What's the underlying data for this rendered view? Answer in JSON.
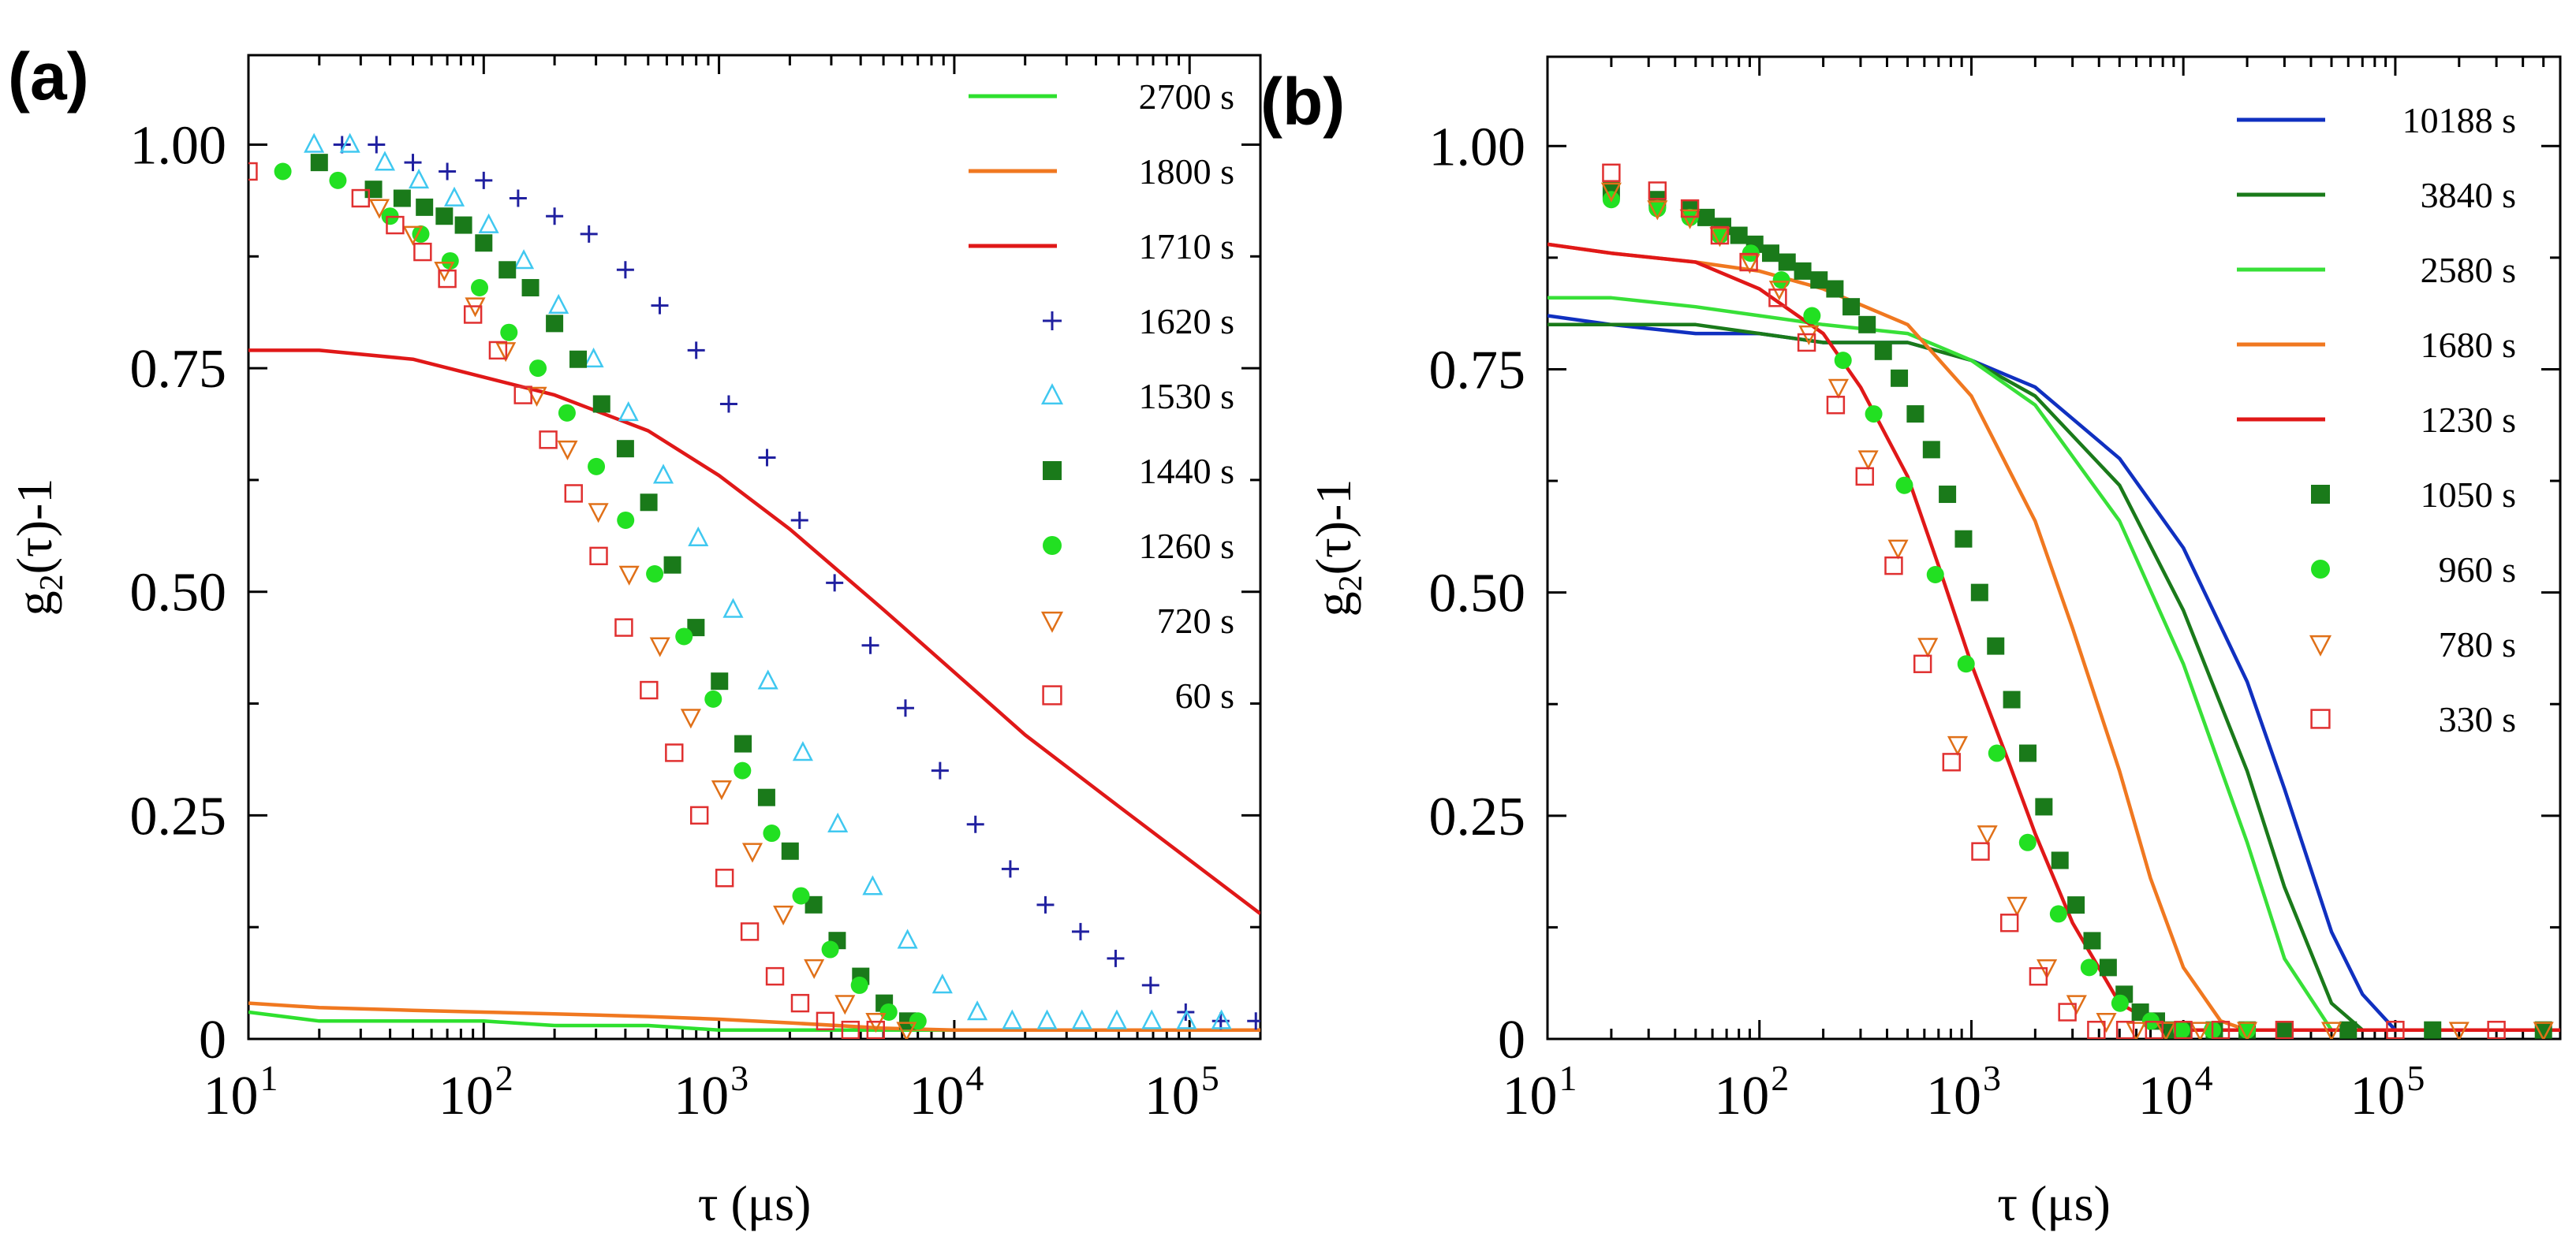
{
  "chart_data": [
    {
      "panel_label": "(a)",
      "type": "scatter",
      "xscale": "log",
      "xlim": [
        10,
        200000
      ],
      "ylim": [
        0,
        1.1
      ],
      "xlabel": "τ (μs)",
      "ylabel": "g2(τ)-1",
      "ylabel_parts": {
        "base": "g",
        "sub": "2",
        "tail": "(τ)-1"
      },
      "xticks": [
        {
          "value": 10,
          "base": "10",
          "exp": "1"
        },
        {
          "value": 100,
          "base": "10",
          "exp": "2"
        },
        {
          "value": 1000,
          "base": "10",
          "exp": "3"
        },
        {
          "value": 10000,
          "base": "10",
          "exp": "4"
        },
        {
          "value": 100000,
          "base": "10",
          "exp": "5"
        }
      ],
      "yticks": [
        {
          "value": 0,
          "label": "0"
        },
        {
          "value": 0.25,
          "label": "0.25"
        },
        {
          "value": 0.5,
          "label": "0.50"
        },
        {
          "value": 0.75,
          "label": "0.75"
        },
        {
          "value": 1.0,
          "label": "1.00"
        }
      ],
      "legend_position": "top-right",
      "series": [
        {
          "name": "2700 s",
          "style": "line",
          "color": "#2ee02e",
          "x": [
            10,
            20,
            50,
            100,
            200,
            500,
            1000,
            2000,
            5000,
            10000,
            50000,
            200000
          ],
          "y": [
            0.03,
            0.02,
            0.02,
            0.02,
            0.015,
            0.015,
            0.01,
            0.01,
            0.01,
            0.01,
            0.01,
            0.01
          ]
        },
        {
          "name": "1800 s",
          "style": "line",
          "color": "#f07820",
          "x": [
            10,
            20,
            50,
            100,
            200,
            500,
            1000,
            2000,
            5000,
            10000,
            50000,
            200000
          ],
          "y": [
            0.04,
            0.035,
            0.032,
            0.03,
            0.028,
            0.025,
            0.022,
            0.018,
            0.012,
            0.01,
            0.01,
            0.01
          ]
        },
        {
          "name": "1710 s",
          "style": "line",
          "color": "#e01818",
          "x": [
            10,
            20,
            50,
            100,
            200,
            500,
            1000,
            2000,
            5000,
            10000,
            20000,
            50000,
            100000,
            200000
          ],
          "y": [
            0.77,
            0.77,
            0.76,
            0.74,
            0.72,
            0.68,
            0.63,
            0.57,
            0.48,
            0.41,
            0.34,
            0.26,
            0.2,
            0.14
          ]
        },
        {
          "name": "1620 s",
          "style": "marker",
          "marker": "plus",
          "color": "#2020a0",
          "x": [
            25,
            35,
            50,
            70,
            100,
            140,
            200,
            280,
            400,
            560,
            800,
            1100,
            1600,
            2200,
            3100,
            4400,
            6200,
            8700,
            12300,
            17300,
            24400,
            34400,
            48500,
            68300,
            96300,
            135700,
            191300
          ],
          "y": [
            1.0,
            1.0,
            0.98,
            0.97,
            0.96,
            0.94,
            0.92,
            0.9,
            0.86,
            0.82,
            0.77,
            0.71,
            0.65,
            0.58,
            0.51,
            0.44,
            0.37,
            0.3,
            0.24,
            0.19,
            0.15,
            0.12,
            0.09,
            0.06,
            0.03,
            0.02,
            0.02
          ]
        },
        {
          "name": "1530 s",
          "style": "marker",
          "marker": "triangle-up",
          "color": "#40c8f0",
          "x": [
            19,
            27,
            38,
            53,
            75,
            105,
            148,
            208,
            293,
            412,
            580,
            816,
            1148,
            1615,
            2272,
            3197,
            4498,
            6328,
            8903,
            12525,
            17622,
            24793,
            34881,
            49073,
            69040,
            97131,
            136652
          ],
          "y": [
            1.0,
            1.0,
            0.98,
            0.96,
            0.94,
            0.91,
            0.87,
            0.82,
            0.76,
            0.7,
            0.63,
            0.56,
            0.48,
            0.4,
            0.32,
            0.24,
            0.17,
            0.11,
            0.06,
            0.03,
            0.02,
            0.02,
            0.02,
            0.02,
            0.02,
            0.02,
            0.02
          ]
        },
        {
          "name": "1440 s",
          "style": "marker",
          "marker": "square-filled",
          "color": "#1a7a1a",
          "x": [
            20,
            34,
            45,
            56,
            68,
            82,
            100,
            126,
            158,
            200,
            252,
            317,
            400,
            503,
            634,
            798,
            1005,
            1265,
            1593,
            2006,
            2525,
            3179,
            4003,
            5040,
            6345
          ],
          "y": [
            0.98,
            0.95,
            0.94,
            0.93,
            0.92,
            0.91,
            0.89,
            0.86,
            0.84,
            0.8,
            0.76,
            0.71,
            0.66,
            0.6,
            0.53,
            0.46,
            0.4,
            0.33,
            0.27,
            0.21,
            0.15,
            0.11,
            0.07,
            0.04,
            0.02
          ]
        },
        {
          "name": "1260 s",
          "style": "marker",
          "marker": "circle-filled",
          "color": "#22e022",
          "x": [
            14,
            24,
            40,
            54,
            72,
            96,
            128,
            170,
            226,
            301,
            401,
            533,
            710,
            945,
            1258,
            1675,
            2230,
            2969,
            3953,
            5263,
            7007
          ],
          "y": [
            0.97,
            0.96,
            0.92,
            0.9,
            0.87,
            0.84,
            0.79,
            0.75,
            0.7,
            0.64,
            0.58,
            0.52,
            0.45,
            0.38,
            0.3,
            0.23,
            0.16,
            0.1,
            0.06,
            0.03,
            0.02
          ]
        },
        {
          "name": "720 s",
          "style": "marker",
          "marker": "triangle-down",
          "color": "#e07018",
          "x": [
            36,
            50,
            68,
            92,
            124,
            168,
            227,
            307,
            415,
            561,
            759,
            1026,
            1387,
            1876,
            2536,
            3430,
            4638,
            6270
          ],
          "y": [
            0.93,
            0.9,
            0.86,
            0.82,
            0.77,
            0.72,
            0.66,
            0.59,
            0.52,
            0.44,
            0.36,
            0.28,
            0.21,
            0.14,
            0.08,
            0.04,
            0.02,
            0.01
          ]
        },
        {
          "name": "60 s",
          "style": "marker",
          "marker": "square-open",
          "color": "#e03030",
          "x": [
            10,
            30,
            42,
            55,
            70,
            90,
            115,
            147,
            188,
            241,
            308,
            394,
            504,
            645,
            825,
            1056,
            1351,
            1729,
            2212,
            2831,
            3622,
            4635
          ],
          "y": [
            0.97,
            0.94,
            0.91,
            0.88,
            0.85,
            0.81,
            0.77,
            0.72,
            0.67,
            0.61,
            0.54,
            0.46,
            0.39,
            0.32,
            0.25,
            0.18,
            0.12,
            0.07,
            0.04,
            0.02,
            0.01,
            0.01
          ]
        }
      ]
    },
    {
      "panel_label": "(b)",
      "type": "scatter",
      "xscale": "log",
      "xlim": [
        10,
        600000
      ],
      "ylim": [
        0,
        1.1
      ],
      "xlabel": "τ (μs)",
      "ylabel": "g2(τ)-1",
      "ylabel_parts": {
        "base": "g",
        "sub": "2",
        "tail": "(τ)-1"
      },
      "xticks": [
        {
          "value": 10,
          "base": "10",
          "exp": "1"
        },
        {
          "value": 100,
          "base": "10",
          "exp": "2"
        },
        {
          "value": 1000,
          "base": "10",
          "exp": "3"
        },
        {
          "value": 10000,
          "base": "10",
          "exp": "4"
        },
        {
          "value": 100000,
          "base": "10",
          "exp": "5"
        }
      ],
      "yticks": [
        {
          "value": 0,
          "label": "0"
        },
        {
          "value": 0.25,
          "label": "0.25"
        },
        {
          "value": 0.5,
          "label": "0.50"
        },
        {
          "value": 0.75,
          "label": "0.75"
        },
        {
          "value": 1.0,
          "label": "1.00"
        }
      ],
      "legend_position": "top-right",
      "series": [
        {
          "name": "10188 s",
          "style": "line",
          "color": "#1030c0",
          "x": [
            10,
            20,
            50,
            100,
            200,
            500,
            1000,
            2000,
            5000,
            10000,
            20000,
            30000,
            50000,
            70000,
            100000,
            200000,
            600000
          ],
          "y": [
            0.81,
            0.8,
            0.79,
            0.79,
            0.78,
            0.78,
            0.76,
            0.73,
            0.65,
            0.55,
            0.4,
            0.28,
            0.12,
            0.05,
            0.01,
            0.01,
            0.01
          ]
        },
        {
          "name": "3840 s",
          "style": "line",
          "color": "#1a7a1a",
          "x": [
            10,
            20,
            50,
            100,
            200,
            500,
            1000,
            2000,
            5000,
            10000,
            20000,
            30000,
            50000,
            70000,
            100000,
            600000
          ],
          "y": [
            0.8,
            0.8,
            0.8,
            0.79,
            0.78,
            0.78,
            0.76,
            0.72,
            0.62,
            0.48,
            0.3,
            0.17,
            0.04,
            0.01,
            0.01,
            0.01
          ]
        },
        {
          "name": "2580 s",
          "style": "line",
          "color": "#38e038",
          "x": [
            10,
            20,
            50,
            100,
            200,
            500,
            1000,
            2000,
            5000,
            10000,
            20000,
            30000,
            50000,
            600000
          ],
          "y": [
            0.83,
            0.83,
            0.82,
            0.81,
            0.8,
            0.79,
            0.76,
            0.71,
            0.58,
            0.42,
            0.22,
            0.09,
            0.01,
            0.01
          ]
        },
        {
          "name": "1680 s",
          "style": "line",
          "color": "#f07820",
          "x": [
            10,
            20,
            50,
            100,
            200,
            500,
            1000,
            2000,
            3000,
            5000,
            7000,
            10000,
            15000,
            20000,
            600000
          ],
          "y": [
            0.89,
            0.88,
            0.87,
            0.86,
            0.84,
            0.8,
            0.72,
            0.58,
            0.46,
            0.3,
            0.18,
            0.08,
            0.02,
            0.01,
            0.01
          ]
        },
        {
          "name": "1230 s",
          "style": "line",
          "color": "#e01818",
          "x": [
            10,
            20,
            50,
            100,
            200,
            300,
            500,
            700,
            1000,
            1500,
            2000,
            3000,
            5000,
            7000,
            10000,
            600000
          ],
          "y": [
            0.89,
            0.88,
            0.87,
            0.84,
            0.79,
            0.73,
            0.63,
            0.53,
            0.42,
            0.31,
            0.23,
            0.13,
            0.04,
            0.02,
            0.01,
            0.01
          ]
        },
        {
          "name": "1050 s",
          "style": "marker",
          "marker": "square-filled",
          "color": "#1a7a1a",
          "x": [
            20,
            33,
            47,
            56,
            67,
            80,
            95,
            113,
            135,
            160,
            191,
            227,
            271,
            322,
            384,
            457,
            544,
            648,
            771,
            918,
            1093,
            1302,
            1550,
            1846,
            2198,
            2617,
            3116,
            3711,
            4419,
            5262,
            6266,
            7462,
            8886,
            10000,
            14000,
            20000,
            30000,
            60000,
            150000,
            500000
          ],
          "y": [
            0.95,
            0.94,
            0.93,
            0.92,
            0.91,
            0.9,
            0.89,
            0.88,
            0.87,
            0.86,
            0.85,
            0.84,
            0.82,
            0.8,
            0.77,
            0.74,
            0.7,
            0.66,
            0.61,
            0.56,
            0.5,
            0.44,
            0.38,
            0.32,
            0.26,
            0.2,
            0.15,
            0.11,
            0.08,
            0.05,
            0.03,
            0.02,
            0.01,
            0.01,
            0.01,
            0.01,
            0.01,
            0.01,
            0.01,
            0.01
          ]
        },
        {
          "name": "960 s",
          "style": "marker",
          "marker": "circle-filled",
          "color": "#22e022",
          "x": [
            20,
            33,
            47,
            65,
            91,
            127,
            177,
            248,
            346,
            483,
            676,
            944,
            1319,
            1843,
            2575,
            3597,
            5026,
            7022,
            9809,
            13706,
            20000
          ],
          "y": [
            0.94,
            0.93,
            0.92,
            0.9,
            0.88,
            0.85,
            0.81,
            0.76,
            0.7,
            0.62,
            0.52,
            0.42,
            0.32,
            0.22,
            0.14,
            0.08,
            0.04,
            0.02,
            0.01,
            0.01,
            0.01
          ]
        },
        {
          "name": "780 s",
          "style": "marker",
          "marker": "triangle-down",
          "color": "#e07018",
          "x": [
            20,
            33,
            47,
            65,
            90,
            124,
            171,
            236,
            326,
            451,
            623,
            861,
            1189,
            1643,
            2270,
            3136,
            4332,
            5985,
            8269,
            12000,
            20000,
            50000,
            200000,
            500000
          ],
          "y": [
            0.95,
            0.93,
            0.92,
            0.9,
            0.87,
            0.84,
            0.79,
            0.73,
            0.65,
            0.55,
            0.44,
            0.33,
            0.23,
            0.15,
            0.08,
            0.04,
            0.02,
            0.01,
            0.01,
            0.01,
            0.01,
            0.01,
            0.01,
            0.01
          ]
        },
        {
          "name": "330 s",
          "style": "marker",
          "marker": "square-open",
          "color": "#e03030",
          "x": [
            20,
            33,
            47,
            65,
            89,
            122,
            167,
            229,
            314,
            430,
            589,
            806,
            1104,
            1512,
            2071,
            2837,
            3886,
            5323,
            7291,
            9988,
            15000,
            30000,
            100000,
            300000
          ],
          "y": [
            0.97,
            0.95,
            0.93,
            0.9,
            0.87,
            0.83,
            0.78,
            0.71,
            0.63,
            0.53,
            0.42,
            0.31,
            0.21,
            0.13,
            0.07,
            0.03,
            0.01,
            0.01,
            0.01,
            0.01,
            0.01,
            0.01,
            0.01,
            0.01
          ]
        }
      ]
    }
  ]
}
